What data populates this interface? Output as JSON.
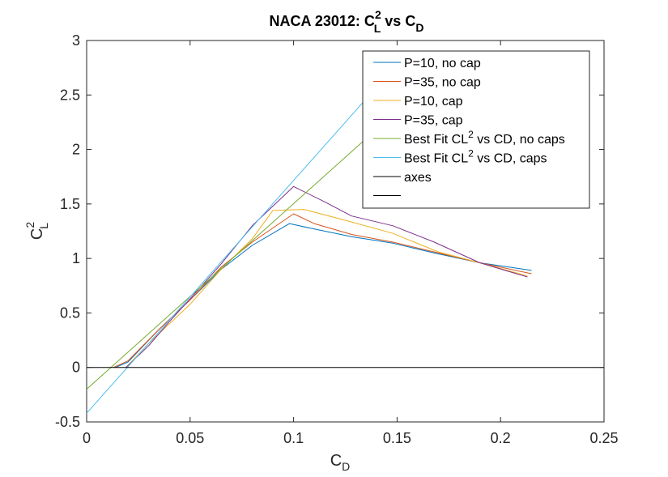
{
  "chart_data": {
    "type": "line",
    "title": {
      "main": "NACA 23012: C",
      "sup": "2",
      "subL": "L",
      "mid": " vs C",
      "subD": "D"
    },
    "xlabel": {
      "main": "C",
      "sub": "D"
    },
    "ylabel": {
      "main": "C",
      "sup": "2",
      "sub": "L"
    },
    "xlim": [
      0,
      0.25
    ],
    "ylim": [
      -0.5,
      3
    ],
    "xticks": [
      0,
      0.05,
      0.1,
      0.15,
      0.2,
      0.25
    ],
    "xtick_labels": [
      "0",
      "0.05",
      "0.1",
      "0.15",
      "0.2",
      "0.25"
    ],
    "yticks": [
      -0.5,
      0,
      0.5,
      1,
      1.5,
      2,
      2.5,
      3
    ],
    "ytick_labels": [
      "-0.5",
      "0",
      "0.5",
      "1",
      "1.5",
      "2",
      "2.5",
      "3"
    ],
    "grid": false,
    "legend_placement": "top-right",
    "series": [
      {
        "name": "P=10, no cap",
        "color": "#0072BD",
        "x": [
          0.014,
          0.02,
          0.035,
          0.05,
          0.065,
          0.08,
          0.098,
          0.11,
          0.128,
          0.148,
          0.168,
          0.19,
          0.215
        ],
        "y": [
          0.0,
          0.05,
          0.35,
          0.62,
          0.9,
          1.12,
          1.32,
          1.27,
          1.2,
          1.14,
          1.05,
          0.96,
          0.89
        ]
      },
      {
        "name": "P=35, no cap",
        "color": "#D95319",
        "x": [
          0.013,
          0.02,
          0.035,
          0.05,
          0.065,
          0.08,
          0.1,
          0.11,
          0.128,
          0.148,
          0.168,
          0.19,
          0.215
        ],
        "y": [
          0.0,
          0.06,
          0.35,
          0.62,
          0.92,
          1.15,
          1.41,
          1.32,
          1.22,
          1.15,
          1.06,
          0.96,
          0.86
        ]
      },
      {
        "name": "P=10, cap",
        "color": "#EDB120",
        "x": [
          0.019,
          0.03,
          0.04,
          0.05,
          0.065,
          0.08,
          0.09,
          0.105,
          0.125,
          0.148,
          0.17,
          0.19,
          0.213
        ],
        "y": [
          0.0,
          0.22,
          0.4,
          0.58,
          0.9,
          1.18,
          1.44,
          1.45,
          1.35,
          1.23,
          1.06,
          0.96,
          0.84
        ]
      },
      {
        "name": "P=35, cap",
        "color": "#7E2F8E",
        "x": [
          0.019,
          0.03,
          0.04,
          0.05,
          0.065,
          0.08,
          0.1,
          0.115,
          0.128,
          0.148,
          0.168,
          0.19,
          0.213
        ],
        "y": [
          0.0,
          0.2,
          0.42,
          0.63,
          0.95,
          1.3,
          1.66,
          1.52,
          1.39,
          1.3,
          1.15,
          0.96,
          0.83
        ]
      },
      {
        "name": "Best Fit CL^2 vs CD, no caps",
        "color": "#77AC30",
        "x": [
          0,
          0.138
        ],
        "y": [
          -0.2,
          2.15
        ]
      },
      {
        "name": "Best Fit CL^2 vs CD, caps",
        "color": "#4DBEEE",
        "x": [
          0,
          0.14
        ],
        "y": [
          -0.42,
          2.57
        ]
      },
      {
        "name": "axes",
        "color": "#000000",
        "x": [
          0,
          0.25
        ],
        "y": [
          0,
          0
        ]
      },
      {
        "name": "",
        "color": "#000000",
        "x": [],
        "y": []
      }
    ],
    "legend": [
      {
        "label": "P=10, no cap",
        "color": "#0072BD"
      },
      {
        "label": "P=35, no cap",
        "color": "#D95319"
      },
      {
        "label": "P=10, cap",
        "color": "#EDB120"
      },
      {
        "label": "P=35, cap",
        "color": "#7E2F8E"
      },
      {
        "label_pre": "Best Fit CL",
        "label_sup": "2",
        "label_post": " vs CD, no caps",
        "color": "#77AC30"
      },
      {
        "label_pre": "Best Fit CL",
        "label_sup": "2",
        "label_post": " vs CD, caps",
        "color": "#4DBEEE"
      },
      {
        "label": "axes",
        "color": "#000000"
      },
      {
        "label": "",
        "color": "#000000"
      }
    ]
  }
}
